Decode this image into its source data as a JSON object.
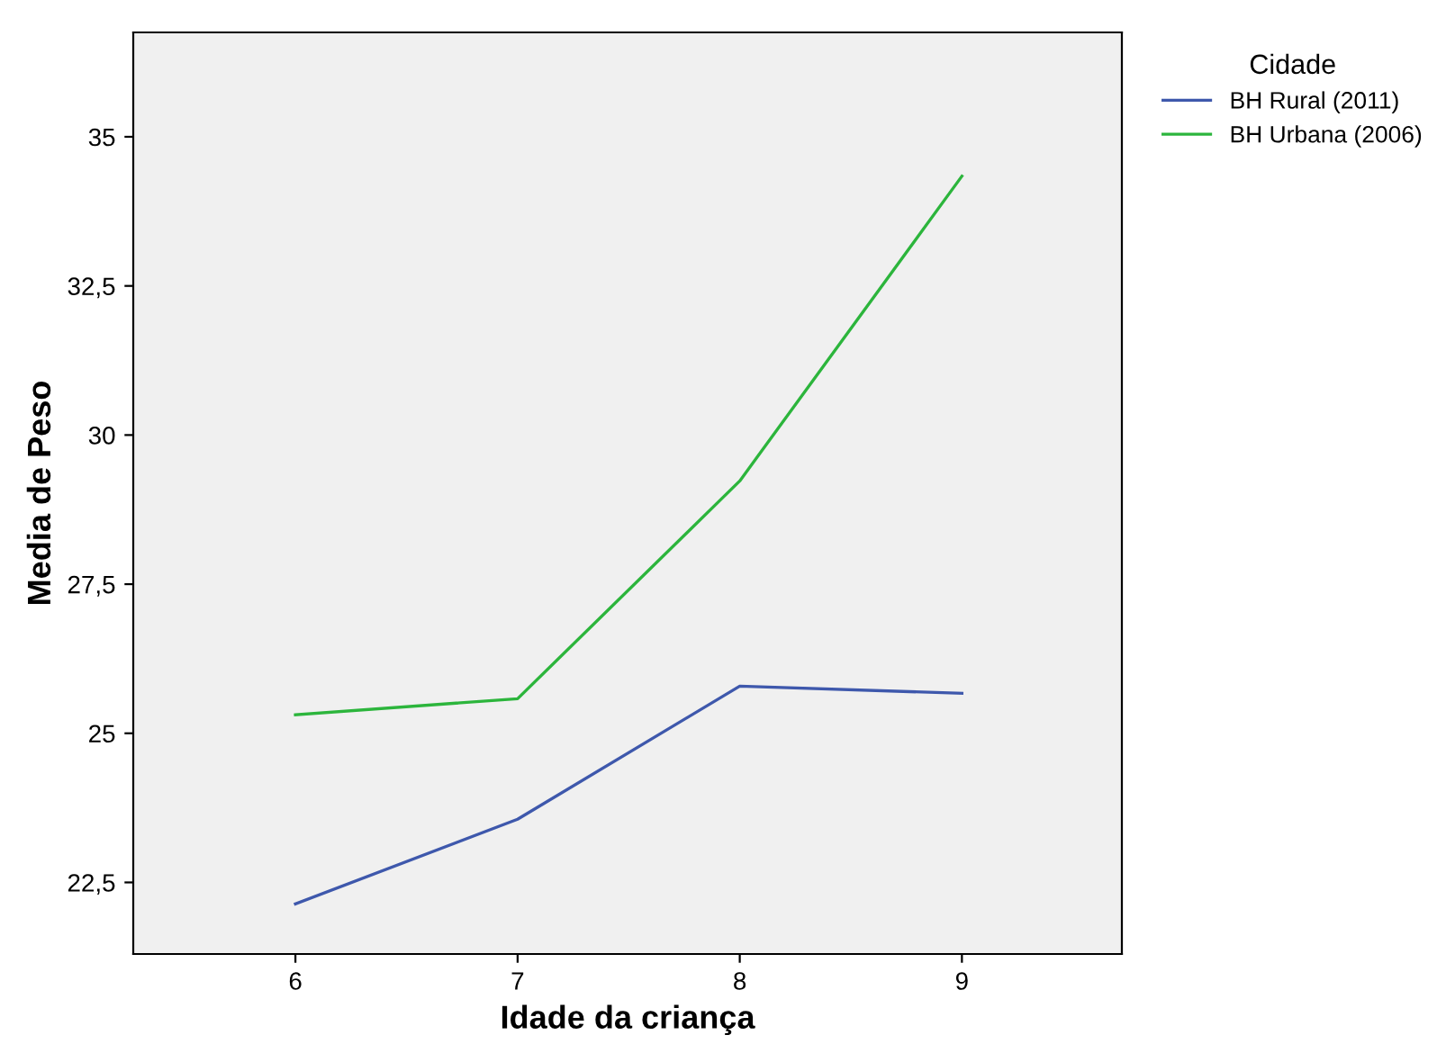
{
  "chart_data": {
    "type": "line",
    "xlabel": "Idade da criança",
    "ylabel": "Media de Peso",
    "legend_title": "Cidade",
    "legend": "top right",
    "x": [
      6,
      7,
      8,
      9
    ],
    "series": [
      {
        "name": "BH Rural (2011)",
        "color": "#3e58ac",
        "values": [
          22.14,
          23.56,
          25.79,
          25.67
        ]
      },
      {
        "name": "BH Urbana (2006)",
        "color": "#2cb53c",
        "values": [
          25.31,
          25.58,
          29.23,
          34.34
        ]
      }
    ],
    "xlim": [
      5.27,
      9.72
    ],
    "xticks": [
      6,
      7,
      8,
      9
    ],
    "ylim": [
      21.3,
      36.75
    ],
    "yticks": [
      {
        "value": 22.5,
        "label": "22,5"
      },
      25,
      {
        "value": 27.5,
        "label": "27,5"
      },
      30,
      {
        "value": 32.5,
        "label": "32,5"
      },
      35
    ],
    "grid": false,
    "marker": "none",
    "line_style": "solid"
  }
}
